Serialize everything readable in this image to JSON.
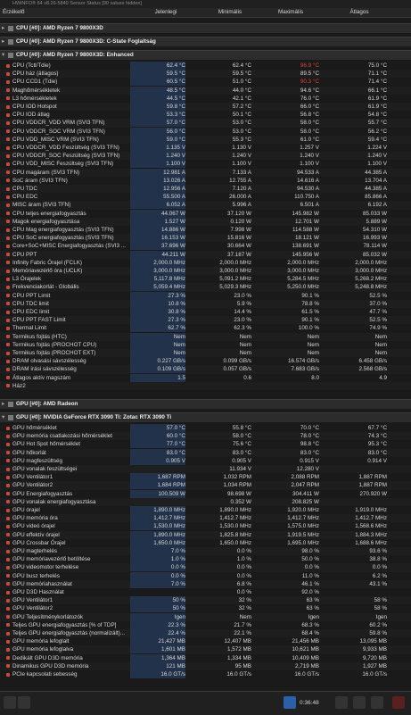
{
  "window_title": "HWiNFO® 64 v8.26-5840 Sensor Status [90 values hidden]",
  "columns": [
    "Érzékelő",
    "Jelenlegi",
    "Minimális",
    "Maximális",
    "Átlagos"
  ],
  "groups": [
    {
      "title": "CPU [#0]: AMD Ryzen 7 9800X3D",
      "collapsed": true,
      "rows": []
    },
    {
      "title": "CPU [#0]: AMD Ryzen 7 9800X3D: C-State Foglaltság",
      "collapsed": true,
      "rows": []
    },
    {
      "title": "CPU [#0]: AMD Ryzen 7 9800X3D: Enhanced",
      "collapsed": false,
      "rows": [
        {
          "label": "CPU (Tctl/Tdie)",
          "values": [
            "62.4 °C",
            "62.4 °C",
            "96.9 °C",
            "75.0 °C"
          ],
          "max_alert": true
        },
        {
          "label": "CPU ház (átlagos)",
          "values": [
            "59.5 °C",
            "59.5 °C",
            "89.5 °C",
            "71.1 °C"
          ]
        },
        {
          "label": "CPU CCD1 (Tdie)",
          "values": [
            "60.5 °C",
            "51.0 °C",
            "90.3 °C",
            "71.4 °C"
          ],
          "max_alert": true
        },
        {
          "label": "Maghőmérsékletek",
          "values": [
            "48.5 °C",
            "44.0 °C",
            "94.6 °C",
            "66.1 °C"
          ]
        },
        {
          "label": "L3 hőmérsékletek",
          "values": [
            "44.5 °C",
            "42.1 °C",
            "76.0 °C",
            "61.9 °C"
          ]
        },
        {
          "label": "CPU IOD Hotspot",
          "values": [
            "59.8 °C",
            "57.2 °C",
            "66.0 °C",
            "61.9 °C"
          ]
        },
        {
          "label": "CPU IOD átlag",
          "values": [
            "53.3 °C",
            "50.1 °C",
            "56.8 °C",
            "54.8 °C"
          ]
        },
        {
          "label": "CPU VDDCR_VDD VRM (SVI3 TFN)",
          "values": [
            "57.0 °C",
            "53.0 °C",
            "58.0 °C",
            "55.7 °C"
          ]
        },
        {
          "label": "CPU VDDCR_SOC VRM (SVI3 TFN)",
          "values": [
            "56.0 °C",
            "53.0 °C",
            "58.0 °C",
            "56.2 °C"
          ]
        },
        {
          "label": "CPU VDD_MISC VRM (SVI3 TFN)",
          "values": [
            "59.0 °C",
            "55.3 °C",
            "61.0 °C",
            "59.4 °C"
          ]
        },
        {
          "label": "CPU VDDCR_VDD Feszültség (SVI3 TFN)",
          "values": [
            "1.135 V",
            "1.130 V",
            "1.257 V",
            "1.224 V"
          ]
        },
        {
          "label": "CPU VDDCR_SOC Feszültség (SVI3 TFN)",
          "values": [
            "1.240 V",
            "1.240 V",
            "1.240 V",
            "1.240 V"
          ]
        },
        {
          "label": "CPU VDD_MISC Feszültség (SVI3 TFN)",
          "values": [
            "1.100 V",
            "1.100 V",
            "1.100 V",
            "1.100 V"
          ]
        },
        {
          "label": "CPU magáram (SVI3 TFN)",
          "values": [
            "12.981 A",
            "7.133 A",
            "94.533 A",
            "44.385 A"
          ]
        },
        {
          "label": "SoC áram (SVI3 TFN)",
          "values": [
            "13.026 A",
            "12.755 A",
            "14.616 A",
            "13.704 A"
          ]
        },
        {
          "label": "CPU TDC",
          "values": [
            "12.956 A",
            "7.120 A",
            "94.530 A",
            "44.385 A"
          ]
        },
        {
          "label": "CPU EDC",
          "values": [
            "55.500 A",
            "26.000 A",
            "110.750 A",
            "85.866 A"
          ]
        },
        {
          "label": "MISC áram (SVI3 TFN)",
          "values": [
            "6.052 A",
            "5.996 A",
            "6.501 A",
            "6.192 A"
          ]
        },
        {
          "label": "CPU teljes energiafogyasztás",
          "values": [
            "44.067 W",
            "37.120 W",
            "145.982 W",
            "85.033 W"
          ]
        },
        {
          "label": "Magok energiafogyasztása",
          "values": [
            "1.527 W",
            "0.120 W",
            "12.701 W",
            "5.889 W"
          ]
        },
        {
          "label": "CPU Mag energiafogyasztás (SVI3 TFN)",
          "values": [
            "14.886 W",
            "7.998 W",
            "114.588 W",
            "54.310 W"
          ]
        },
        {
          "label": "CPU SoC energiafogyasztás (SVI3 TFN)",
          "values": [
            "16.153 W",
            "15.816 W",
            "18.121 W",
            "16.993 W"
          ]
        },
        {
          "label": "Core+SoC+MISC Energiafogyasztás (SVI3 ...",
          "values": [
            "37.696 W",
            "30.664 W",
            "138.691 W",
            "78.114 W"
          ]
        },
        {
          "label": "CPU PPT",
          "values": [
            "44.211 W",
            "37.187 W",
            "145.956 W",
            "85.032 W"
          ]
        },
        {
          "label": "Infinity Fabric Órajel (FCLK)",
          "values": [
            "2,000.0 MHz",
            "2,000.0 MHz",
            "2,000.0 MHz",
            "2,000.0 MHz"
          ]
        },
        {
          "label": "Memóriavezérlő óra (UCLK)",
          "values": [
            "3,000.0 MHz",
            "3,000.0 MHz",
            "3,000.0 MHz",
            "3,000.0 MHz"
          ]
        },
        {
          "label": "L3 Órajelek",
          "values": [
            "5,117.8 MHz",
            "5,091.2 MHz",
            "5,284.5 MHz",
            "5,268.2 MHz"
          ]
        },
        {
          "label": "Frekvenciakorlát - Globális",
          "values": [
            "5,059.4 MHz",
            "5,029.3 MHz",
            "5,250.0 MHz",
            "5,248.8 MHz"
          ]
        },
        {
          "label": "CPU PPT Limit",
          "values": [
            "27.3 %",
            "23.0 %",
            "90.1 %",
            "52.5 %"
          ]
        },
        {
          "label": "CPU TDC limit",
          "values": [
            "10.8 %",
            "5.9 %",
            "78.8 %",
            "37.0 %"
          ]
        },
        {
          "label": "CPU EDC limit",
          "values": [
            "30.8 %",
            "14.4 %",
            "61.5 %",
            "47.7 %"
          ]
        },
        {
          "label": "CPU PPT FAST Limit",
          "values": [
            "27.3 %",
            "23.0 %",
            "90.1 %",
            "52.5 %"
          ]
        },
        {
          "label": "Thermal Limit",
          "values": [
            "62.7 %",
            "62.3 %",
            "100.0 %",
            "74.9 %"
          ]
        },
        {
          "label": "Termikus fojtás (HTC)",
          "values": [
            "Nem",
            "Nem",
            "Nem",
            "Nem"
          ]
        },
        {
          "label": "Termikus fojtás (PROCHOT CPU)",
          "values": [
            "Nem",
            "Nem",
            "Nem",
            "Nem"
          ]
        },
        {
          "label": "Termikus fojtás (PROCHOT EXT)",
          "values": [
            "Nem",
            "Nem",
            "Nem",
            "Nem"
          ]
        },
        {
          "label": "DRAM olvasási sávszélesség",
          "values": [
            "0.227 GB/s",
            "0.099 GB/s",
            "16.574 GB/s",
            "6.458 GB/s"
          ]
        },
        {
          "label": "DRAM írási sávszélesség",
          "values": [
            "0.109 GB/s",
            "0.057 GB/s",
            "7.683 GB/s",
            "2.568 GB/s"
          ]
        },
        {
          "label": "Átlagos aktív magszám",
          "values": [
            "1.5",
            "0.6",
            "8.0",
            "4.9"
          ]
        },
        {
          "label": "Ház2",
          "values": []
        }
      ]
    },
    {
      "title": "GPU [#0]: AMD Radeon",
      "collapsed": true,
      "rows": []
    },
    {
      "title": "GPU [#0]: NVIDIA GeForce RTX 3090 Ti: Zotac RTX 3090 Ti",
      "collapsed": false,
      "rows": [
        {
          "label": "GPU hőmérséklet",
          "values": [
            "57.0 °C",
            "55.8 °C",
            "70.0 °C",
            "67.7 °C"
          ]
        },
        {
          "label": "GPU memória csatlakozási hőmérséklet",
          "values": [
            "60.0 °C",
            "58.0 °C",
            "78.0 °C",
            "74.3 °C"
          ]
        },
        {
          "label": "GPU Hot Spot hőmérséklet",
          "values": [
            "77.0 °C",
            "75.6 °C",
            "98.8 °C",
            "95.3 °C"
          ]
        },
        {
          "label": "GPU hőkorlát",
          "values": [
            "83.0 °C",
            "83.0 °C",
            "83.0 °C",
            "83.0 °C"
          ]
        },
        {
          "label": "GPU magfeszültség",
          "values": [
            "0.905 V",
            "0.905 V",
            "0.915 V",
            "0.914 V"
          ]
        },
        {
          "label": "GPU vonalak feszültségei",
          "values": [
            null,
            "11.934 V",
            "12.280 V",
            null
          ]
        },
        {
          "label": "GPU Ventilátor1",
          "values": [
            "1,687 RPM",
            "1,032 RPM",
            "2,088 RPM",
            "1,887 RPM"
          ]
        },
        {
          "label": "GPU Ventilátor2",
          "values": [
            "1,684 RPM",
            "1,034 RPM",
            "2,047 RPM",
            "1,887 RPM"
          ]
        },
        {
          "label": "GPU Energiafogyasztás",
          "values": [
            "100.509 W",
            "98.698 W",
            "304.411 W",
            "270.920 W"
          ]
        },
        {
          "label": "GPU vonalak energiafogyasztása",
          "values": [
            null,
            "0.352 W",
            "208.825 W",
            null
          ]
        },
        {
          "label": "GPU órajel",
          "values": [
            "1,890.0 MHz",
            "1,890.0 MHz",
            "1,920.0 MHz",
            "1,919.0 MHz"
          ]
        },
        {
          "label": "GPU memória óra",
          "values": [
            "1,412.7 MHz",
            "1,412.7 MHz",
            "1,412.7 MHz",
            "1,412.7 MHz"
          ]
        },
        {
          "label": "GPU videó órajel",
          "values": [
            "1,530.0 MHz",
            "1,530.0 MHz",
            "1,575.0 MHz",
            "1,568.6 MHz"
          ]
        },
        {
          "label": "GPU effektív órajel",
          "values": [
            "1,890.0 MHz",
            "1,825.8 MHz",
            "1,919.5 MHz",
            "1,884.3 MHz"
          ]
        },
        {
          "label": "GPU Crossbar Órajel",
          "values": [
            "1,650.0 MHz",
            "1,650.0 MHz",
            "1,695.0 MHz",
            "1,688.6 MHz"
          ]
        },
        {
          "label": "GPU magterhelés",
          "values": [
            "7.0 %",
            "0.0 %",
            "98.0 %",
            "93.6 %"
          ]
        },
        {
          "label": "GPU memóriavezérlő betöltése",
          "values": [
            "1.0 %",
            "1.0 %",
            "50.0 %",
            "38.8 %"
          ]
        },
        {
          "label": "GPU videomotor terhelése",
          "values": [
            "0.0 %",
            "0.0 %",
            "0.0 %",
            "0.0 %"
          ]
        },
        {
          "label": "GPU busz terhelés",
          "values": [
            "0.0 %",
            "0.0 %",
            "11.0 %",
            "6.2 %"
          ]
        },
        {
          "label": "GPU memóriahasználat",
          "values": [
            "7.0 %",
            "6.8 %",
            "46.1 %",
            "43.1 %"
          ]
        },
        {
          "label": "GPU D3D Használat",
          "values": [
            null,
            "0.0 %",
            "92.0 %",
            null
          ]
        },
        {
          "label": "GPU Ventilátor1",
          "values": [
            "50 %",
            "32 %",
            "63 %",
            "58 %"
          ]
        },
        {
          "label": "GPU Ventilátor2",
          "values": [
            "50 %",
            "32 %",
            "63 %",
            "58 %"
          ]
        },
        {
          "label": "GPU Teljesítménykorlátozók",
          "values": [
            "Igen",
            "Nem",
            "Igen",
            "Igen"
          ]
        },
        {
          "label": "Teljes GPU energiafogyasztás [% of TDP]",
          "values": [
            "22.3 %",
            "21.7 %",
            "68.3 %",
            "60.2 %"
          ]
        },
        {
          "label": "Teljes GPU energiafogyasztás (normalizált)...",
          "values": [
            "22.4 %",
            "22.1 %",
            "68.4 %",
            "59.8 %"
          ]
        },
        {
          "label": "GPU memória lefoglalt",
          "values": [
            "21,427 MB",
            "12,407 MB",
            "21,456 MB",
            "13,095 MB"
          ]
        },
        {
          "label": "GPU memória lefoglalva",
          "values": [
            "1,601 MB",
            "1,572 MB",
            "10,621 MB",
            "9,933 MB"
          ]
        },
        {
          "label": "Dedikált GPU D3D memória",
          "values": [
            "1,364 MB",
            "1,334 MB",
            "10,409 MB",
            "9,720 MB"
          ]
        },
        {
          "label": "Dinamikus GPU D3D memória",
          "values": [
            "121 MB",
            "95 MB",
            "2,719 MB",
            "1,927 MB"
          ]
        },
        {
          "label": "PCIe kapcsolati sebesség",
          "values": [
            "16.0 GT/s",
            "16.0 GT/s",
            "16.0 GT/s",
            "16.0 GT/s"
          ]
        }
      ]
    }
  ],
  "toolbar": {
    "elapsed": "0:36:48"
  }
}
